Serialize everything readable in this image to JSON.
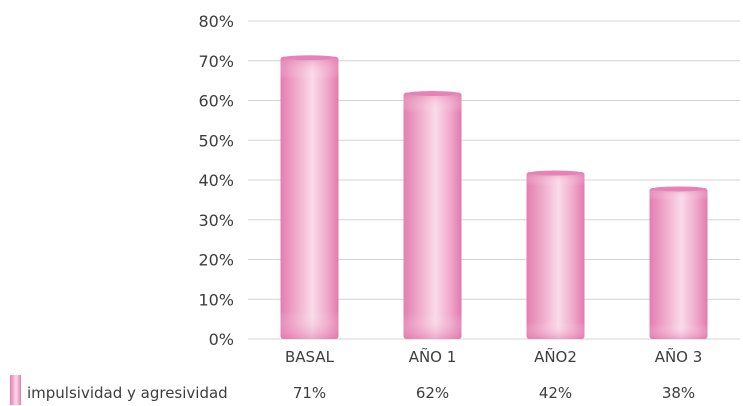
{
  "chart_data": {
    "type": "bar",
    "categories": [
      "BASAL",
      "AÑO 1",
      "AÑO2",
      "AÑO 3"
    ],
    "series": [
      {
        "name": "impulsividad y agresividad",
        "values": [
          71,
          62,
          42,
          38
        ],
        "value_labels": [
          "71%",
          "62%",
          "42%",
          "38%"
        ],
        "color": "#e98ab8"
      }
    ],
    "ylim": [
      0,
      80
    ],
    "y_ticks": [
      0,
      10,
      20,
      30,
      40,
      50,
      60,
      70,
      80
    ],
    "y_tick_labels": [
      "0%",
      "10%",
      "20%",
      "30%",
      "40%",
      "50%",
      "60%",
      "70%",
      "80%"
    ],
    "grid": true,
    "legend_placement": "bottom-left",
    "data_table_below": true
  },
  "colors": {
    "bar_dark": "#e47daf",
    "bar_light": "#f7d3e5",
    "grid": "#d4d4d4",
    "text": "#3d3d3d"
  }
}
